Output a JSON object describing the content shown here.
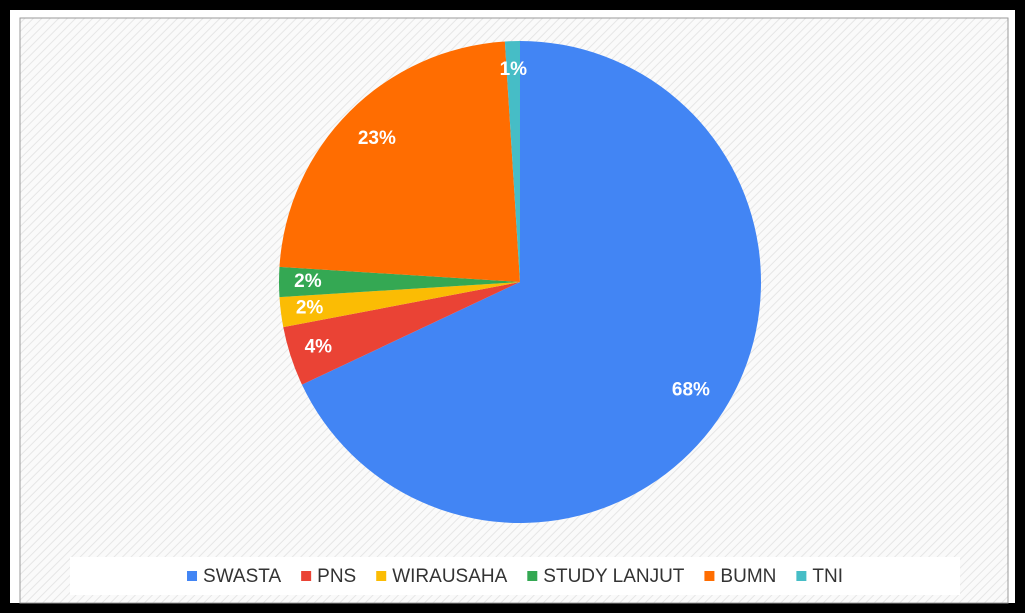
{
  "chart_data": {
    "type": "pie",
    "categories": [
      "SWASTA",
      "PNS",
      "WIRAUSAHA",
      "STUDY LANJUT",
      "BUMN",
      "TNI"
    ],
    "values": [
      68,
      4,
      2,
      2,
      23,
      1
    ],
    "value_labels": [
      "68%",
      "4%",
      "2%",
      "2%",
      "23%",
      "1%"
    ],
    "colors": [
      "#4285f4",
      "#ea4335",
      "#fbbc04",
      "#34a853",
      "#ff6d01",
      "#46bdc6"
    ],
    "legend": "bottom"
  }
}
